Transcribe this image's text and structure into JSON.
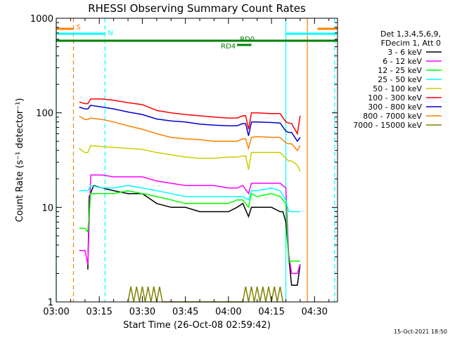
{
  "chart_data": {
    "type": "line",
    "title": "RHESSI Observing Summary Count Rates",
    "xlabel": "Start Time (26-Oct-08 02:59:42)",
    "ylabel": "Count Rate (s⁻¹ detector⁻¹)",
    "yscale": "log",
    "ylim": [
      1,
      1000
    ],
    "xlim_minutes": [
      0,
      98
    ],
    "x_ticks": [
      {
        "m": 0,
        "label": "03:00"
      },
      {
        "m": 15,
        "label": "03:15"
      },
      {
        "m": 30,
        "label": "03:30"
      },
      {
        "m": 45,
        "label": "03:45"
      },
      {
        "m": 60,
        "label": "04:00"
      },
      {
        "m": 75,
        "label": "04:15"
      },
      {
        "m": 90,
        "label": "04:30"
      }
    ],
    "y_ticks": [
      {
        "v": 1,
        "label": "1"
      },
      {
        "v": 10,
        "label": "10"
      },
      {
        "v": 100,
        "label": "100"
      },
      {
        "v": 1000,
        "label": "1000"
      }
    ],
    "legend_header": [
      "Det 1,3,4,5,6,9,",
      "FDecim 1, Att 0"
    ],
    "series": [
      {
        "name": "3 - 6 keV",
        "color": "#000000",
        "values": [
          [
            11,
            2.2
          ],
          [
            11.5,
            13
          ],
          [
            13,
            17
          ],
          [
            16,
            16
          ],
          [
            20,
            15
          ],
          [
            25,
            14
          ],
          [
            30,
            14
          ],
          [
            35,
            11
          ],
          [
            40,
            10
          ],
          [
            45,
            10
          ],
          [
            50,
            9
          ],
          [
            55,
            9
          ],
          [
            60,
            9
          ],
          [
            63,
            10
          ],
          [
            65,
            11
          ],
          [
            67,
            8
          ],
          [
            68,
            10
          ],
          [
            70,
            10
          ],
          [
            75,
            10
          ],
          [
            78,
            9
          ],
          [
            79,
            9
          ],
          [
            80,
            7
          ],
          [
            81,
            3
          ],
          [
            82,
            1.5
          ],
          [
            84,
            1.5
          ],
          [
            85,
            2.5
          ]
        ]
      },
      {
        "name": "6 - 12 keV",
        "color": "#ff00ff",
        "values": [
          [
            8,
            3.5
          ],
          [
            10,
            3.5
          ],
          [
            11,
            2.5
          ],
          [
            12,
            22
          ],
          [
            16,
            22
          ],
          [
            20,
            21
          ],
          [
            25,
            21
          ],
          [
            30,
            21
          ],
          [
            35,
            19
          ],
          [
            40,
            18
          ],
          [
            45,
            17
          ],
          [
            50,
            17
          ],
          [
            55,
            17
          ],
          [
            60,
            16
          ],
          [
            63,
            16
          ],
          [
            65,
            17
          ],
          [
            67,
            14
          ],
          [
            68,
            18
          ],
          [
            70,
            18
          ],
          [
            75,
            18
          ],
          [
            78,
            18
          ],
          [
            80,
            16
          ],
          [
            81,
            3.2
          ],
          [
            82,
            2
          ],
          [
            84,
            2
          ],
          [
            85,
            2.5
          ]
        ]
      },
      {
        "name": "12 - 25 keV",
        "color": "#00ff00",
        "values": [
          [
            8,
            6
          ],
          [
            10,
            6
          ],
          [
            11,
            5.5
          ],
          [
            12,
            14
          ],
          [
            16,
            14
          ],
          [
            20,
            14
          ],
          [
            25,
            15
          ],
          [
            30,
            14
          ],
          [
            35,
            13
          ],
          [
            40,
            12
          ],
          [
            45,
            11
          ],
          [
            50,
            11
          ],
          [
            55,
            11
          ],
          [
            60,
            11
          ],
          [
            63,
            12
          ],
          [
            65,
            12
          ],
          [
            67,
            10
          ],
          [
            68,
            14
          ],
          [
            70,
            13
          ],
          [
            75,
            14
          ],
          [
            78,
            13
          ],
          [
            80,
            11
          ],
          [
            81,
            2.6
          ],
          [
            82,
            2.7
          ],
          [
            84,
            2.7
          ],
          [
            85,
            2.7
          ]
        ]
      },
      {
        "name": "25 - 50 keV",
        "color": "#00ffff",
        "values": [
          [
            8,
            15
          ],
          [
            10,
            15
          ],
          [
            11,
            15
          ],
          [
            12,
            17
          ],
          [
            16,
            16
          ],
          [
            20,
            16
          ],
          [
            25,
            17
          ],
          [
            30,
            16
          ],
          [
            35,
            15
          ],
          [
            40,
            14
          ],
          [
            45,
            13
          ],
          [
            50,
            13
          ],
          [
            55,
            13
          ],
          [
            60,
            13
          ],
          [
            63,
            13
          ],
          [
            65,
            13
          ],
          [
            67,
            12
          ],
          [
            68,
            15
          ],
          [
            70,
            15
          ],
          [
            75,
            16
          ],
          [
            78,
            15
          ],
          [
            80,
            12
          ],
          [
            81,
            9
          ],
          [
            82,
            9
          ],
          [
            84,
            9
          ],
          [
            85,
            9
          ]
        ]
      },
      {
        "name": "50 - 100 keV",
        "color": "#cccc00",
        "values": [
          [
            8,
            42
          ],
          [
            10,
            38
          ],
          [
            11,
            38
          ],
          [
            12,
            45
          ],
          [
            16,
            44
          ],
          [
            20,
            43
          ],
          [
            25,
            42
          ],
          [
            30,
            41
          ],
          [
            35,
            38
          ],
          [
            40,
            36
          ],
          [
            45,
            34
          ],
          [
            50,
            33
          ],
          [
            55,
            33
          ],
          [
            60,
            34
          ],
          [
            63,
            34
          ],
          [
            65,
            35
          ],
          [
            66,
            35
          ],
          [
            67,
            25
          ],
          [
            68,
            38
          ],
          [
            70,
            38
          ],
          [
            75,
            38
          ],
          [
            78,
            38
          ],
          [
            80,
            33
          ],
          [
            81,
            31
          ],
          [
            82,
            31
          ],
          [
            84,
            28
          ],
          [
            85,
            24
          ]
        ]
      },
      {
        "name": "100 - 300 keV",
        "color": "#ff0000",
        "values": [
          [
            8,
            130
          ],
          [
            10,
            125
          ],
          [
            11,
            125
          ],
          [
            12,
            140
          ],
          [
            16,
            140
          ],
          [
            20,
            136
          ],
          [
            25,
            128
          ],
          [
            30,
            122
          ],
          [
            35,
            106
          ],
          [
            40,
            100
          ],
          [
            45,
            96
          ],
          [
            50,
            93
          ],
          [
            55,
            90
          ],
          [
            60,
            88
          ],
          [
            63,
            88
          ],
          [
            65,
            93
          ],
          [
            66,
            93
          ],
          [
            67,
            67
          ],
          [
            68,
            100
          ],
          [
            70,
            100
          ],
          [
            75,
            98
          ],
          [
            78,
            98
          ],
          [
            80,
            80
          ],
          [
            81,
            78
          ],
          [
            82,
            77
          ],
          [
            84,
            60
          ],
          [
            85,
            93
          ]
        ]
      },
      {
        "name": "300 - 800 keV",
        "color": "#0000cc",
        "values": [
          [
            8,
            115
          ],
          [
            10,
            110
          ],
          [
            11,
            110
          ],
          [
            12,
            120
          ],
          [
            16,
            115
          ],
          [
            20,
            110
          ],
          [
            25,
            102
          ],
          [
            30,
            96
          ],
          [
            35,
            86
          ],
          [
            40,
            82
          ],
          [
            45,
            80
          ],
          [
            50,
            76
          ],
          [
            55,
            74
          ],
          [
            60,
            73
          ],
          [
            63,
            73
          ],
          [
            65,
            77
          ],
          [
            66,
            77
          ],
          [
            67,
            57
          ],
          [
            68,
            80
          ],
          [
            70,
            80
          ],
          [
            75,
            79
          ],
          [
            78,
            78
          ],
          [
            80,
            64
          ],
          [
            81,
            62
          ],
          [
            82,
            62
          ],
          [
            84,
            50
          ],
          [
            85,
            55
          ]
        ]
      },
      {
        "name": "800 - 7000 keV",
        "color": "#ff8000",
        "values": [
          [
            8,
            92
          ],
          [
            10,
            85
          ],
          [
            11,
            85
          ],
          [
            12,
            88
          ],
          [
            16,
            85
          ],
          [
            20,
            80
          ],
          [
            25,
            73
          ],
          [
            30,
            67
          ],
          [
            35,
            60
          ],
          [
            40,
            55
          ],
          [
            45,
            53
          ],
          [
            50,
            52
          ],
          [
            55,
            50
          ],
          [
            60,
            50
          ],
          [
            63,
            50
          ],
          [
            65,
            53
          ],
          [
            66,
            53
          ],
          [
            67,
            42
          ],
          [
            68,
            55
          ],
          [
            70,
            56
          ],
          [
            75,
            55
          ],
          [
            78,
            55
          ],
          [
            80,
            48
          ],
          [
            81,
            47
          ],
          [
            82,
            47
          ],
          [
            84,
            40
          ],
          [
            85,
            45
          ]
        ]
      },
      {
        "name": "7000 - 15000 keV",
        "color": "#808000",
        "values": [
          [
            25,
            1
          ],
          [
            26,
            1.45
          ],
          [
            27,
            1
          ],
          [
            28,
            1.45
          ],
          [
            29,
            1
          ],
          [
            30,
            1.45
          ],
          [
            31,
            1
          ],
          [
            32,
            1.45
          ],
          [
            33,
            1
          ],
          [
            34,
            1.45
          ],
          [
            35,
            1
          ],
          [
            36,
            1.45
          ],
          [
            37,
            1
          ],
          [
            65,
            1
          ],
          [
            66,
            1.45
          ],
          [
            67,
            1
          ],
          [
            68,
            1.45
          ],
          [
            69,
            1
          ],
          [
            70,
            1.45
          ],
          [
            71,
            1
          ],
          [
            72,
            1.45
          ],
          [
            73,
            1
          ],
          [
            74,
            1.45
          ],
          [
            75,
            1
          ],
          [
            76,
            1.45
          ],
          [
            77,
            1
          ],
          [
            78,
            1.45
          ],
          [
            79,
            1
          ]
        ]
      }
    ],
    "flag_bars": [
      {
        "label": "S",
        "color": "#ff8000",
        "range": [
          0,
          6
        ]
      },
      {
        "label": "S",
        "color": "#ff8000",
        "range": [
          91,
          98
        ]
      },
      {
        "label": "N",
        "color": "#00ffff",
        "range": [
          0,
          17
        ]
      },
      {
        "label": "N",
        "color": "#00ffff",
        "range": [
          80,
          98
        ]
      },
      {
        "label": "RD0",
        "color": "#008000",
        "range": [
          0,
          98
        ]
      },
      {
        "label": "RD4",
        "color": "#008000",
        "range": [
          63,
          68
        ]
      }
    ],
    "vertical_markers": [
      {
        "m": 0,
        "color": "#00ffff",
        "style": "solid"
      },
      {
        "m": 6,
        "color": "#ff8000",
        "style": "dash"
      },
      {
        "m": 17,
        "color": "#00ffff",
        "style": "dash"
      },
      {
        "m": 80,
        "color": "#00ffff",
        "style": "solid"
      },
      {
        "m": 87.5,
        "color": "#ff8000",
        "style": "solid"
      },
      {
        "m": 97,
        "color": "#00ffff",
        "style": "dash"
      }
    ]
  },
  "footer_timestamp": "15-Oct-2021 18:50"
}
